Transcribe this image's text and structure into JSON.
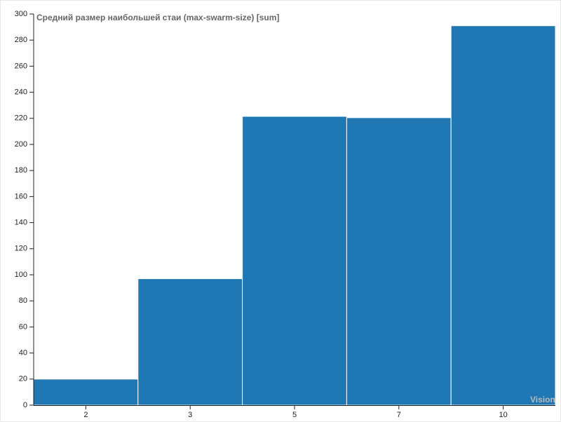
{
  "chart_data": {
    "type": "bar",
    "title": "Средний размер наибольшей стаи (max-swarm-size) [sum]",
    "x_label": "Vision",
    "categories": [
      "2",
      "3",
      "5",
      "7",
      "10"
    ],
    "values": [
      20,
      97,
      221.5,
      220.5,
      291
    ],
    "color": "#1f77b4",
    "ylim": [
      0,
      300
    ],
    "yticks": [
      0,
      20,
      40,
      60,
      80,
      100,
      120,
      140,
      160,
      180,
      200,
      220,
      240,
      260,
      280,
      300
    ]
  }
}
